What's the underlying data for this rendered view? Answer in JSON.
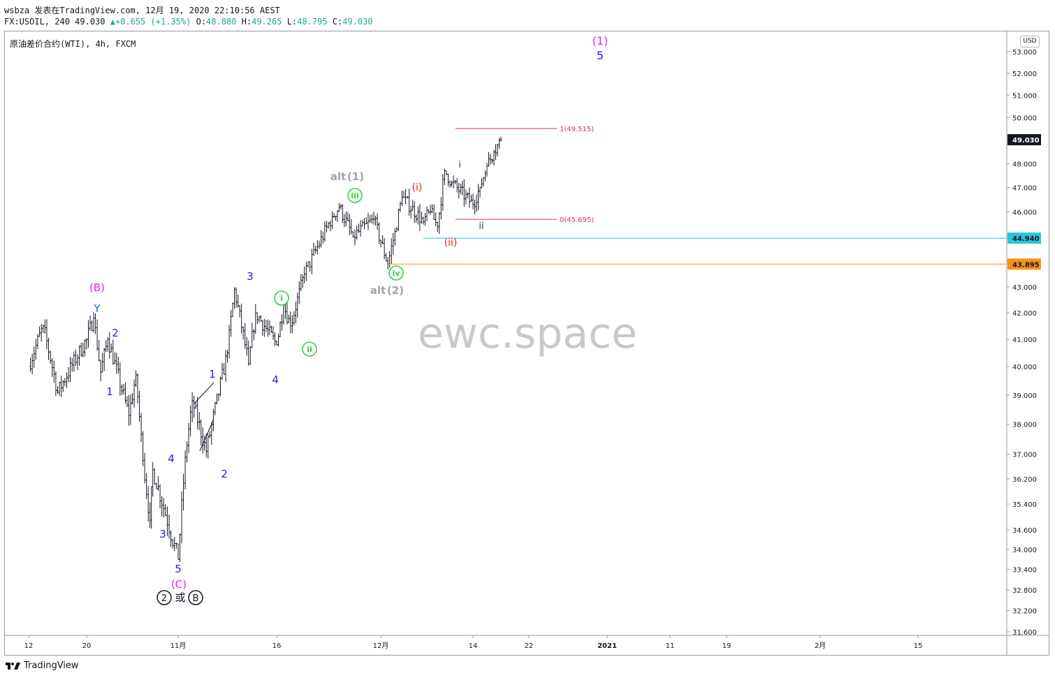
{
  "header": {
    "line1": "wsbza 发表在TradingView.com, 12月 19, 2020 22:10:56 AEST",
    "symbol_info": "FX:USOIL, 240",
    "last": "49.030",
    "change": "+0.655 (+1.35%)",
    "o_label": "O:",
    "o": "48.880",
    "h_label": "H:",
    "h": "49.265",
    "l_label": "L:",
    "l": "48.795",
    "c_label": "C:",
    "c": "49.030"
  },
  "symbol_title": "原油差价合约(WTI), 4h, FXCM",
  "currency": "USD",
  "watermark": "ewc.space",
  "footer_brand": "TradingView",
  "chart_data": {
    "type": "candlestick-ohlc",
    "title": "原油差价合约(WTI), 4h, FXCM",
    "y_axis_ticks": [
      53.0,
      52.0,
      51.0,
      50.0,
      49.0,
      48.0,
      47.0,
      46.0,
      45.0,
      44.0,
      43.0,
      42.0,
      41.0,
      40.0,
      39.0,
      38.0,
      37.0,
      36.2,
      35.4,
      34.6,
      34.0,
      33.4,
      32.8,
      32.2,
      31.6
    ],
    "y_axis_labels": [
      "53.000",
      "52.000",
      "51.000",
      "50.000",
      "49.000",
      "48.000",
      "47.000",
      "46.000",
      "45.000",
      "44.000",
      "43.000",
      "42.000",
      "41.000",
      "40.000",
      "39.000",
      "38.000",
      "37.000",
      "36.200",
      "35.400",
      "34.600",
      "34.000",
      "33.400",
      "32.800",
      "32.200",
      "31.600"
    ],
    "y_scale": "log",
    "x_axis_labels": [
      "12",
      "20",
      "11月",
      "16",
      "12月",
      "14",
      "22",
      "2021",
      "11",
      "19",
      "2月",
      "15"
    ],
    "x_axis_label_bold": [
      false,
      false,
      false,
      false,
      false,
      false,
      false,
      true,
      false,
      false,
      false,
      false
    ],
    "price_tags": [
      {
        "value": 49.03,
        "label": "49.030",
        "color": "#131722"
      },
      {
        "value": 44.94,
        "label": "44.940",
        "color": "#26c6da"
      },
      {
        "value": 43.895,
        "label": "43.895",
        "color": "#f7931a"
      }
    ],
    "horizontal_lines": [
      {
        "value": 44.94,
        "color": "#26c6da",
        "from": "2020-12-07"
      },
      {
        "value": 43.895,
        "color": "#f7931a",
        "from": "2020-12-02"
      }
    ],
    "fib_levels": [
      {
        "label": "1(49.515)",
        "value": 49.515
      },
      {
        "label": "0(45.695)",
        "value": 45.695
      }
    ],
    "wave_labels": [
      {
        "text": "(1)",
        "color": "#e91ee9",
        "style": "paren"
      },
      {
        "text": "5",
        "color": "#1e1ee6",
        "style": "plain"
      },
      {
        "text": "(B)",
        "color": "#e91ee9",
        "style": "paren"
      },
      {
        "text": "Y",
        "color": "#1e64e6",
        "style": "plain"
      },
      {
        "text": "1",
        "color": "#1e1ee6"
      },
      {
        "text": "2",
        "color": "#1e1ee6"
      },
      {
        "text": "3",
        "color": "#1e1ee6"
      },
      {
        "text": "4",
        "color": "#1e1ee6"
      },
      {
        "text": "5",
        "color": "#1e1ee6"
      },
      {
        "text": "(C)",
        "color": "#e91ee9"
      },
      {
        "text": "1",
        "color": "#1e1ee6"
      },
      {
        "text": "2",
        "color": "#1e1ee6"
      },
      {
        "text": "3",
        "color": "#1e1ee6"
      },
      {
        "text": "4",
        "color": "#1e1ee6"
      },
      {
        "text": "i",
        "color": "#2ecc40",
        "style": "circle"
      },
      {
        "text": "ii",
        "color": "#2ecc40",
        "style": "circle"
      },
      {
        "text": "iii",
        "color": "#2ecc40",
        "style": "circle"
      },
      {
        "text": "iv",
        "color": "#2ecc40",
        "style": "circle"
      },
      {
        "text": "alt",
        "color": "#a0a3ab"
      },
      {
        "text": "(1)",
        "color": "#a0a3ab"
      },
      {
        "text": "alt",
        "color": "#a0a3ab"
      },
      {
        "text": "(2)",
        "color": "#a0a3ab"
      },
      {
        "text": "(i)",
        "color": "#e62020"
      },
      {
        "text": "(ii)",
        "color": "#e62020"
      },
      {
        "text": "i",
        "color": "#333333"
      },
      {
        "text": "ii",
        "color": "#333333"
      },
      {
        "text": "2",
        "color": "#131722",
        "style": "circle-black"
      },
      {
        "text": "或",
        "color": "#131722"
      },
      {
        "text": "B",
        "color": "#131722",
        "style": "circle-black"
      }
    ],
    "swing_points": [
      {
        "date": "2020-10-12",
        "price": 40.0
      },
      {
        "date": "2020-10-14",
        "price": 41.5
      },
      {
        "date": "2020-10-16",
        "price": 39.1
      },
      {
        "date": "2020-10-20",
        "price": 41.0
      },
      {
        "date": "2020-10-21",
        "price": 41.8
      },
      {
        "date": "2020-10-22",
        "price": 39.8
      },
      {
        "date": "2020-10-23",
        "price": 41.0
      },
      {
        "date": "2020-10-26",
        "price": 38.3
      },
      {
        "date": "2020-10-27",
        "price": 39.7
      },
      {
        "date": "2020-10-28",
        "price": 36.8
      },
      {
        "date": "2020-10-29",
        "price": 34.9
      },
      {
        "date": "2020-10-29",
        "price": 36.5
      },
      {
        "date": "2020-11-02",
        "price": 33.7
      },
      {
        "date": "2020-11-03",
        "price": 36.9
      },
      {
        "date": "2020-11-04",
        "price": 38.8
      },
      {
        "date": "2020-11-06",
        "price": 37.1
      },
      {
        "date": "2020-11-09",
        "price": 40.5
      },
      {
        "date": "2020-11-10",
        "price": 42.9
      },
      {
        "date": "2020-11-12",
        "price": 40.1
      },
      {
        "date": "2020-11-13",
        "price": 42.0
      },
      {
        "date": "2020-11-16",
        "price": 40.8
      },
      {
        "date": "2020-11-17",
        "price": 42.3
      },
      {
        "date": "2020-11-18",
        "price": 41.5
      },
      {
        "date": "2020-11-20",
        "price": 43.5
      },
      {
        "date": "2020-11-24",
        "price": 45.8
      },
      {
        "date": "2020-11-25",
        "price": 46.2
      },
      {
        "date": "2020-11-27",
        "price": 45.0
      },
      {
        "date": "2020-11-30",
        "price": 45.7
      },
      {
        "date": "2020-12-02",
        "price": 43.9
      },
      {
        "date": "2020-12-03",
        "price": 45.2
      },
      {
        "date": "2020-12-04",
        "price": 46.6
      },
      {
        "date": "2020-12-07",
        "price": 45.6
      },
      {
        "date": "2020-12-08",
        "price": 46.0
      },
      {
        "date": "2020-12-09",
        "price": 45.4
      },
      {
        "date": "2020-12-10",
        "price": 47.7
      },
      {
        "date": "2020-12-11",
        "price": 47.2
      },
      {
        "date": "2020-12-14",
        "price": 46.3
      },
      {
        "date": "2020-12-15",
        "price": 47.0
      },
      {
        "date": "2020-12-16",
        "price": 47.9
      },
      {
        "date": "2020-12-17",
        "price": 48.5
      },
      {
        "date": "2020-12-18",
        "price": 49.03
      }
    ]
  }
}
